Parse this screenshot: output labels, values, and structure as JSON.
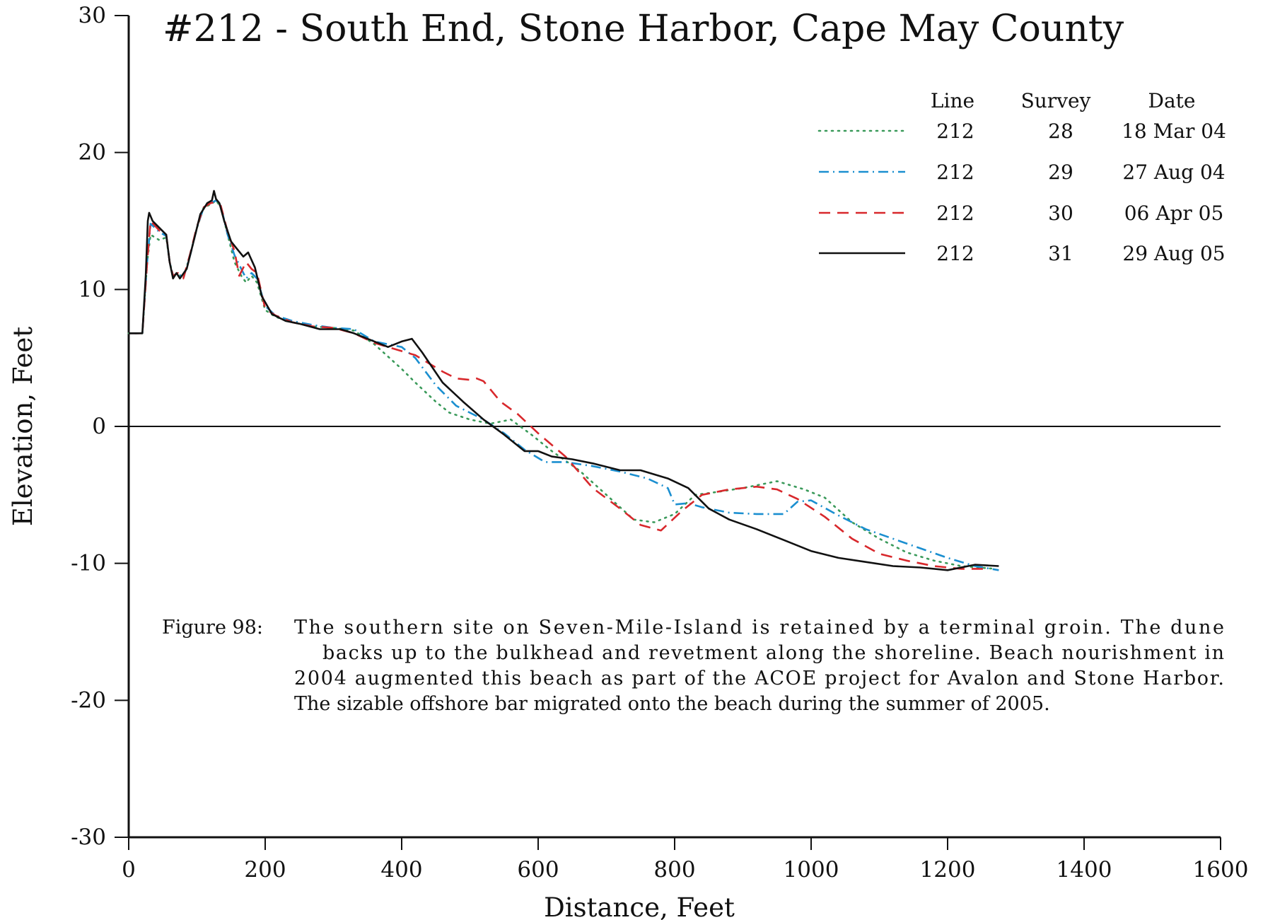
{
  "chart_data": {
    "type": "line",
    "title": "#212 - South End, Stone Harbor, Cape May County",
    "xlabel": "Distance, Feet",
    "ylabel": "Elevation, Feet",
    "xlim": [
      0,
      1600
    ],
    "ylim": [
      -30,
      30
    ],
    "x_ticks": [
      "0",
      "200",
      "400",
      "600",
      "800",
      "1000",
      "1200",
      "1400",
      "1600"
    ],
    "y_ticks": [
      "30",
      "20",
      "10",
      "0",
      "-10",
      "-20",
      "-30"
    ],
    "zero_line": true,
    "grid": false,
    "legend": {
      "placement": "top-right",
      "headers": [
        "Line",
        "Survey",
        "Date"
      ],
      "rows": [
        {
          "line": "212",
          "survey": "28",
          "date": "18 Mar 04"
        },
        {
          "line": "212",
          "survey": "29",
          "date": "27 Aug 04"
        },
        {
          "line": "212",
          "survey": "30",
          "date": "06 Apr 05"
        },
        {
          "line": "212",
          "survey": "31",
          "date": "29 Aug 05"
        }
      ]
    },
    "series": [
      {
        "style": "dotted",
        "color": "#3a9a5a",
        "points": [
          [
            0,
            6.8
          ],
          [
            20,
            6.8
          ],
          [
            27,
            12
          ],
          [
            32,
            14
          ],
          [
            45,
            13.6
          ],
          [
            55,
            13.8
          ],
          [
            60,
            12
          ],
          [
            65,
            11
          ],
          [
            72,
            11.2
          ],
          [
            80,
            10.8
          ],
          [
            90,
            12.5
          ],
          [
            100,
            14.5
          ],
          [
            110,
            16
          ],
          [
            120,
            16.2
          ],
          [
            128,
            16.5
          ],
          [
            135,
            16
          ],
          [
            145,
            14
          ],
          [
            155,
            12
          ],
          [
            165,
            11
          ],
          [
            172,
            10.5
          ],
          [
            180,
            11
          ],
          [
            188,
            10.5
          ],
          [
            200,
            8.5
          ],
          [
            215,
            8
          ],
          [
            240,
            7.6
          ],
          [
            270,
            7.3
          ],
          [
            300,
            7.2
          ],
          [
            330,
            7
          ],
          [
            360,
            6
          ],
          [
            400,
            4.2
          ],
          [
            420,
            3.2
          ],
          [
            450,
            1.8
          ],
          [
            470,
            1
          ],
          [
            500,
            0.5
          ],
          [
            530,
            0.2
          ],
          [
            560,
            0.5
          ],
          [
            590,
            -0.6
          ],
          [
            620,
            -1.8
          ],
          [
            660,
            -3.2
          ],
          [
            700,
            -5
          ],
          [
            740,
            -6.8
          ],
          [
            770,
            -7
          ],
          [
            800,
            -6.4
          ],
          [
            830,
            -5
          ],
          [
            860,
            -4.8
          ],
          [
            900,
            -4.5
          ],
          [
            950,
            -4
          ],
          [
            990,
            -4.6
          ],
          [
            1020,
            -5.2
          ],
          [
            1060,
            -7
          ],
          [
            1100,
            -8.2
          ],
          [
            1140,
            -9.2
          ],
          [
            1180,
            -9.8
          ],
          [
            1220,
            -10.2
          ],
          [
            1270,
            -10.4
          ]
        ]
      },
      {
        "style": "dash-dot",
        "color": "#1b8fd0",
        "points": [
          [
            0,
            6.8
          ],
          [
            20,
            6.8
          ],
          [
            27,
            12
          ],
          [
            32,
            14.8
          ],
          [
            45,
            14.2
          ],
          [
            55,
            13.9
          ],
          [
            60,
            12
          ],
          [
            65,
            11
          ],
          [
            72,
            11.2
          ],
          [
            80,
            10.8
          ],
          [
            90,
            12.5
          ],
          [
            100,
            14.5
          ],
          [
            110,
            16
          ],
          [
            120,
            16.3
          ],
          [
            128,
            16.5
          ],
          [
            135,
            16.1
          ],
          [
            145,
            14
          ],
          [
            155,
            12.5
          ],
          [
            165,
            11.5
          ],
          [
            172,
            10.8
          ],
          [
            180,
            11.2
          ],
          [
            188,
            10.8
          ],
          [
            200,
            8.8
          ],
          [
            215,
            8.1
          ],
          [
            240,
            7.7
          ],
          [
            270,
            7.4
          ],
          [
            300,
            7.2
          ],
          [
            330,
            7.1
          ],
          [
            360,
            6.2
          ],
          [
            400,
            5.8
          ],
          [
            420,
            5
          ],
          [
            450,
            3
          ],
          [
            480,
            1.5
          ],
          [
            520,
            0.5
          ],
          [
            550,
            -0.5
          ],
          [
            580,
            -1.7
          ],
          [
            610,
            -2.6
          ],
          [
            640,
            -2.6
          ],
          [
            680,
            -2.9
          ],
          [
            720,
            -3.3
          ],
          [
            760,
            -3.8
          ],
          [
            790,
            -4.5
          ],
          [
            800,
            -5.7
          ],
          [
            820,
            -5.6
          ],
          [
            840,
            -5.9
          ],
          [
            880,
            -6.3
          ],
          [
            920,
            -6.4
          ],
          [
            960,
            -6.4
          ],
          [
            980,
            -5.5
          ],
          [
            1000,
            -5.4
          ],
          [
            1040,
            -6.5
          ],
          [
            1080,
            -7.5
          ],
          [
            1120,
            -8.2
          ],
          [
            1160,
            -8.9
          ],
          [
            1200,
            -9.6
          ],
          [
            1240,
            -10.2
          ],
          [
            1275,
            -10.5
          ]
        ]
      },
      {
        "style": "dashed",
        "color": "#d8282c",
        "points": [
          [
            0,
            6.8
          ],
          [
            20,
            6.8
          ],
          [
            27,
            12
          ],
          [
            32,
            15
          ],
          [
            45,
            14.3
          ],
          [
            55,
            14
          ],
          [
            60,
            12
          ],
          [
            65,
            11
          ],
          [
            72,
            11.2
          ],
          [
            80,
            10.8
          ],
          [
            90,
            12.6
          ],
          [
            100,
            14.6
          ],
          [
            110,
            16
          ],
          [
            120,
            16.3
          ],
          [
            128,
            16.4
          ],
          [
            135,
            16.1
          ],
          [
            145,
            14.2
          ],
          [
            155,
            12.8
          ],
          [
            162,
            11
          ],
          [
            172,
            12
          ],
          [
            180,
            11.5
          ],
          [
            188,
            11.2
          ],
          [
            200,
            8.6
          ],
          [
            215,
            8.1
          ],
          [
            240,
            7.6
          ],
          [
            270,
            7.3
          ],
          [
            300,
            7.2
          ],
          [
            330,
            6.8
          ],
          [
            360,
            6.1
          ],
          [
            400,
            5.5
          ],
          [
            420,
            5.2
          ],
          [
            460,
            4
          ],
          [
            480,
            3.5
          ],
          [
            500,
            3.4
          ],
          [
            510,
            3.5
          ],
          [
            520,
            3.3
          ],
          [
            545,
            1.8
          ],
          [
            570,
            0.9
          ],
          [
            600,
            -0.5
          ],
          [
            640,
            -2.2
          ],
          [
            680,
            -4.5
          ],
          [
            720,
            -6
          ],
          [
            750,
            -7.2
          ],
          [
            780,
            -7.6
          ],
          [
            810,
            -6.2
          ],
          [
            840,
            -5
          ],
          [
            880,
            -4.6
          ],
          [
            920,
            -4.4
          ],
          [
            950,
            -4.6
          ],
          [
            980,
            -5.3
          ],
          [
            1020,
            -6.6
          ],
          [
            1060,
            -8.2
          ],
          [
            1100,
            -9.3
          ],
          [
            1140,
            -9.8
          ],
          [
            1180,
            -10.2
          ],
          [
            1220,
            -10.4
          ],
          [
            1260,
            -10.4
          ]
        ]
      },
      {
        "style": "solid",
        "color": "#111111",
        "points": [
          [
            0,
            6.8
          ],
          [
            20,
            6.8
          ],
          [
            25,
            11
          ],
          [
            28,
            15
          ],
          [
            30,
            15.6
          ],
          [
            35,
            15
          ],
          [
            45,
            14.5
          ],
          [
            55,
            14
          ],
          [
            60,
            12
          ],
          [
            65,
            10.8
          ],
          [
            70,
            11.2
          ],
          [
            75,
            10.8
          ],
          [
            85,
            11.5
          ],
          [
            95,
            13.5
          ],
          [
            105,
            15.5
          ],
          [
            115,
            16.3
          ],
          [
            122,
            16.5
          ],
          [
            125,
            17.2
          ],
          [
            128,
            16.6
          ],
          [
            133,
            16.3
          ],
          [
            140,
            15
          ],
          [
            150,
            13.5
          ],
          [
            158,
            13
          ],
          [
            168,
            12.4
          ],
          [
            175,
            12.7
          ],
          [
            185,
            11.6
          ],
          [
            195,
            9.5
          ],
          [
            210,
            8.2
          ],
          [
            230,
            7.7
          ],
          [
            250,
            7.5
          ],
          [
            280,
            7.1
          ],
          [
            310,
            7.1
          ],
          [
            330,
            6.8
          ],
          [
            360,
            6.2
          ],
          [
            380,
            5.8
          ],
          [
            400,
            6.2
          ],
          [
            415,
            6.4
          ],
          [
            430,
            5.4
          ],
          [
            460,
            3.2
          ],
          [
            490,
            1.8
          ],
          [
            520,
            0.5
          ],
          [
            550,
            -0.6
          ],
          [
            580,
            -1.8
          ],
          [
            600,
            -1.8
          ],
          [
            620,
            -2.2
          ],
          [
            650,
            -2.4
          ],
          [
            680,
            -2.7
          ],
          [
            720,
            -3.2
          ],
          [
            750,
            -3.2
          ],
          [
            790,
            -3.8
          ],
          [
            820,
            -4.5
          ],
          [
            850,
            -6
          ],
          [
            880,
            -6.8
          ],
          [
            920,
            -7.5
          ],
          [
            960,
            -8.3
          ],
          [
            1000,
            -9.1
          ],
          [
            1040,
            -9.6
          ],
          [
            1080,
            -9.9
          ],
          [
            1120,
            -10.2
          ],
          [
            1160,
            -10.3
          ],
          [
            1200,
            -10.5
          ],
          [
            1240,
            -10.1
          ],
          [
            1275,
            -10.2
          ]
        ]
      }
    ]
  },
  "caption": {
    "label": "Figure 98:",
    "lines": [
      "The southern site on Seven-Mile-Island is retained by a terminal groin.  The dune",
      "backs up to the bulkhead and revetment along the shoreline.  Beach nourishment in",
      "2004 augmented this beach as part of the ACOE project for Avalon and Stone Harbor.",
      "The sizable offshore bar migrated onto the beach during the summer of 2005."
    ]
  }
}
